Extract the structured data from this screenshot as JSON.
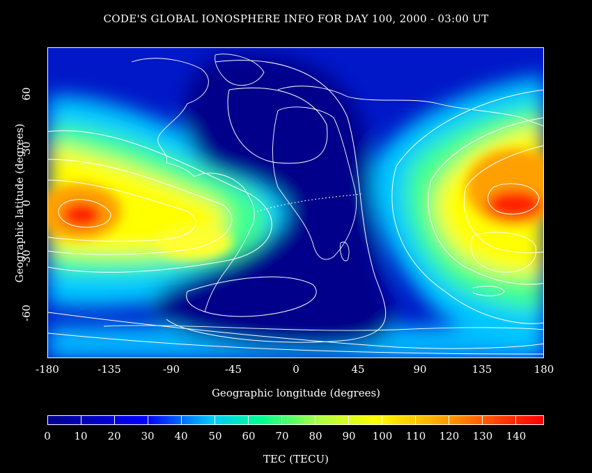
{
  "title": "CODE'S GLOBAL IONOSPHERE INFO FOR DAY 100, 2000 - 03:00 UT",
  "x_axis": {
    "label": "Geographic longitude (degrees)",
    "ticks": [
      "-180",
      "-135",
      "-90",
      "-45",
      "0",
      "45",
      "90",
      "135",
      "180"
    ],
    "range": [
      -180,
      180
    ]
  },
  "y_axis": {
    "label": "Geographic latitude (degrees)",
    "ticks": [
      "-60",
      "-30",
      "0",
      "30",
      "60"
    ],
    "range": [
      -87.5,
      87.5
    ]
  },
  "colorbar": {
    "label": "TEC (TECU)",
    "ticks": [
      "0",
      "10",
      "20",
      "30",
      "40",
      "50",
      "60",
      "70",
      "80",
      "90",
      "100",
      "110",
      "120",
      "130",
      "140"
    ],
    "range": [
      0,
      148
    ]
  },
  "map_features": {
    "high_tec_east_center": {
      "lon": 160,
      "lat": -3,
      "tec": 132
    },
    "high_tec_west_center": {
      "lon": -167,
      "lat": -7,
      "tec": 135
    },
    "low_tec_region": "Atlantic / Africa / polar",
    "colors": {
      "low": "#00008f",
      "mid": "#00ff90",
      "high": "#ff0000",
      "contour": "#ffffff",
      "coast": "#ffffff"
    }
  }
}
